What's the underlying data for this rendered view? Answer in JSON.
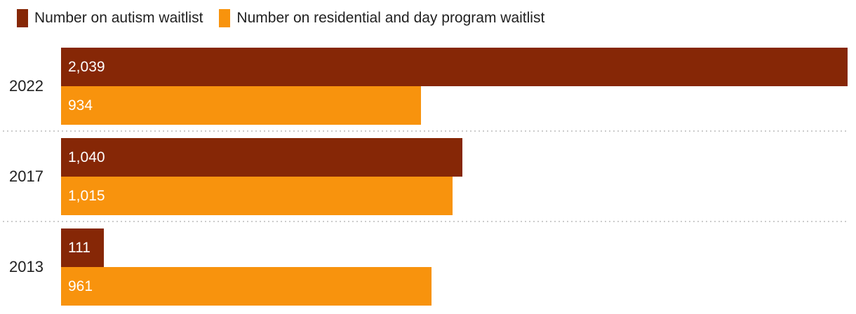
{
  "colors": {
    "autism": "#862706",
    "residential": "#F8930D",
    "legend_text": "#212121",
    "year_text": "#212121",
    "value_text": "#ffffff",
    "separator": "#cccccc",
    "background": "#ffffff"
  },
  "legend": {
    "items": [
      {
        "key": "autism",
        "label": "Number on autism waitlist"
      },
      {
        "key": "residential",
        "label": "Number on residential and day program waitlist"
      }
    ]
  },
  "chart_data": {
    "type": "bar",
    "orientation": "horizontal",
    "categories": [
      "2022",
      "2017",
      "2013"
    ],
    "series": [
      {
        "name": "Number on autism waitlist",
        "key": "autism",
        "values": [
          2039,
          1040,
          111
        ]
      },
      {
        "name": "Number on residential and day program waitlist",
        "key": "residential",
        "values": [
          934,
          1015,
          961
        ]
      }
    ],
    "xlim": [
      0,
      2039
    ],
    "grid": false,
    "legend_position": "top",
    "groups": [
      {
        "year": "2022",
        "bars": [
          {
            "series": "autism",
            "value": 2039,
            "label": "2,039"
          },
          {
            "series": "residential",
            "value": 934,
            "label": "934"
          }
        ]
      },
      {
        "year": "2017",
        "bars": [
          {
            "series": "autism",
            "value": 1040,
            "label": "1,040"
          },
          {
            "series": "residential",
            "value": 1015,
            "label": "1,015"
          }
        ]
      },
      {
        "year": "2013",
        "bars": [
          {
            "series": "autism",
            "value": 111,
            "label": "111"
          },
          {
            "series": "residential",
            "value": 961,
            "label": "961"
          }
        ]
      }
    ]
  }
}
